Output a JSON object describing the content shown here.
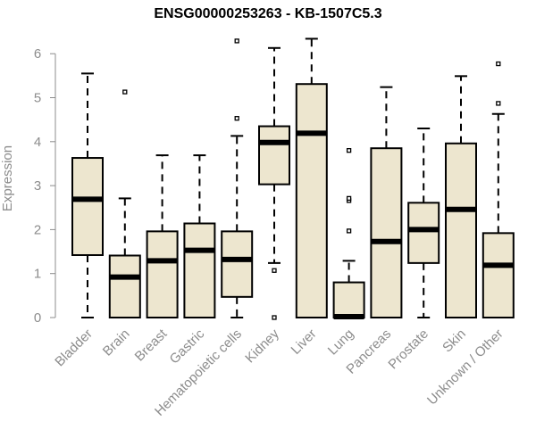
{
  "chart_data": {
    "type": "box",
    "title": "ENSG00000253263 - KB-1507C5.3",
    "xlabel": "",
    "ylabel": "Expression",
    "ylim": [
      0,
      6.3
    ],
    "yticks": [
      0,
      1,
      2,
      3,
      4,
      5,
      6
    ],
    "grid": false,
    "colors": {
      "box_fill": "#ede6cf",
      "outline": "#000000",
      "axis_text": "#8c8c8c"
    },
    "categories": [
      "Bladder",
      "Brain",
      "Breast",
      "Gastric",
      "Hematopoietic cells",
      "Kidney",
      "Liver",
      "Lung",
      "Pancreas",
      "Prostate",
      "Skin",
      "Unknown / Other"
    ],
    "boxes": [
      {
        "category": "Bladder",
        "whisker_low": 0,
        "q1": 1.42,
        "median": 2.69,
        "q3": 3.63,
        "whisker_high": 5.55,
        "outliers": []
      },
      {
        "category": "Brain",
        "whisker_low": 0,
        "q1": 0,
        "median": 0.92,
        "q3": 1.41,
        "whisker_high": 2.71,
        "outliers": [
          5.13
        ]
      },
      {
        "category": "Breast",
        "whisker_low": 0,
        "q1": 0,
        "median": 1.29,
        "q3": 1.96,
        "whisker_high": 3.69,
        "outliers": []
      },
      {
        "category": "Gastric",
        "whisker_low": 0,
        "q1": 0,
        "median": 1.53,
        "q3": 2.14,
        "whisker_high": 3.69,
        "outliers": []
      },
      {
        "category": "Hematopoietic cells",
        "whisker_low": 0,
        "q1": 0.47,
        "median": 1.32,
        "q3": 1.96,
        "whisker_high": 4.13,
        "outliers": [
          4.53,
          6.29
        ]
      },
      {
        "category": "Kidney",
        "whisker_low": 1.24,
        "q1": 3.03,
        "median": 3.98,
        "q3": 4.35,
        "whisker_high": 6.13,
        "outliers": [
          1.07,
          0
        ]
      },
      {
        "category": "Liver",
        "whisker_low": 0,
        "q1": 0,
        "median": 4.19,
        "q3": 5.31,
        "whisker_high": 6.34,
        "outliers": []
      },
      {
        "category": "Lung",
        "whisker_low": 0,
        "q1": 0,
        "median": 0.02,
        "q3": 0.8,
        "whisker_high": 1.29,
        "outliers": [
          1.97,
          2.66,
          2.71,
          3.8
        ]
      },
      {
        "category": "Pancreas",
        "whisker_low": 0,
        "q1": 0,
        "median": 1.73,
        "q3": 3.85,
        "whisker_high": 5.24,
        "outliers": []
      },
      {
        "category": "Prostate",
        "whisker_low": 0,
        "q1": 1.24,
        "median": 2.0,
        "q3": 2.61,
        "whisker_high": 4.3,
        "outliers": []
      },
      {
        "category": "Skin",
        "whisker_low": 0,
        "q1": 0,
        "median": 2.46,
        "q3": 3.96,
        "whisker_high": 5.49,
        "outliers": []
      },
      {
        "category": "Unknown / Other",
        "whisker_low": 0,
        "q1": 0,
        "median": 1.19,
        "q3": 1.92,
        "whisker_high": 4.63,
        "outliers": [
          4.87,
          5.77
        ]
      }
    ]
  }
}
